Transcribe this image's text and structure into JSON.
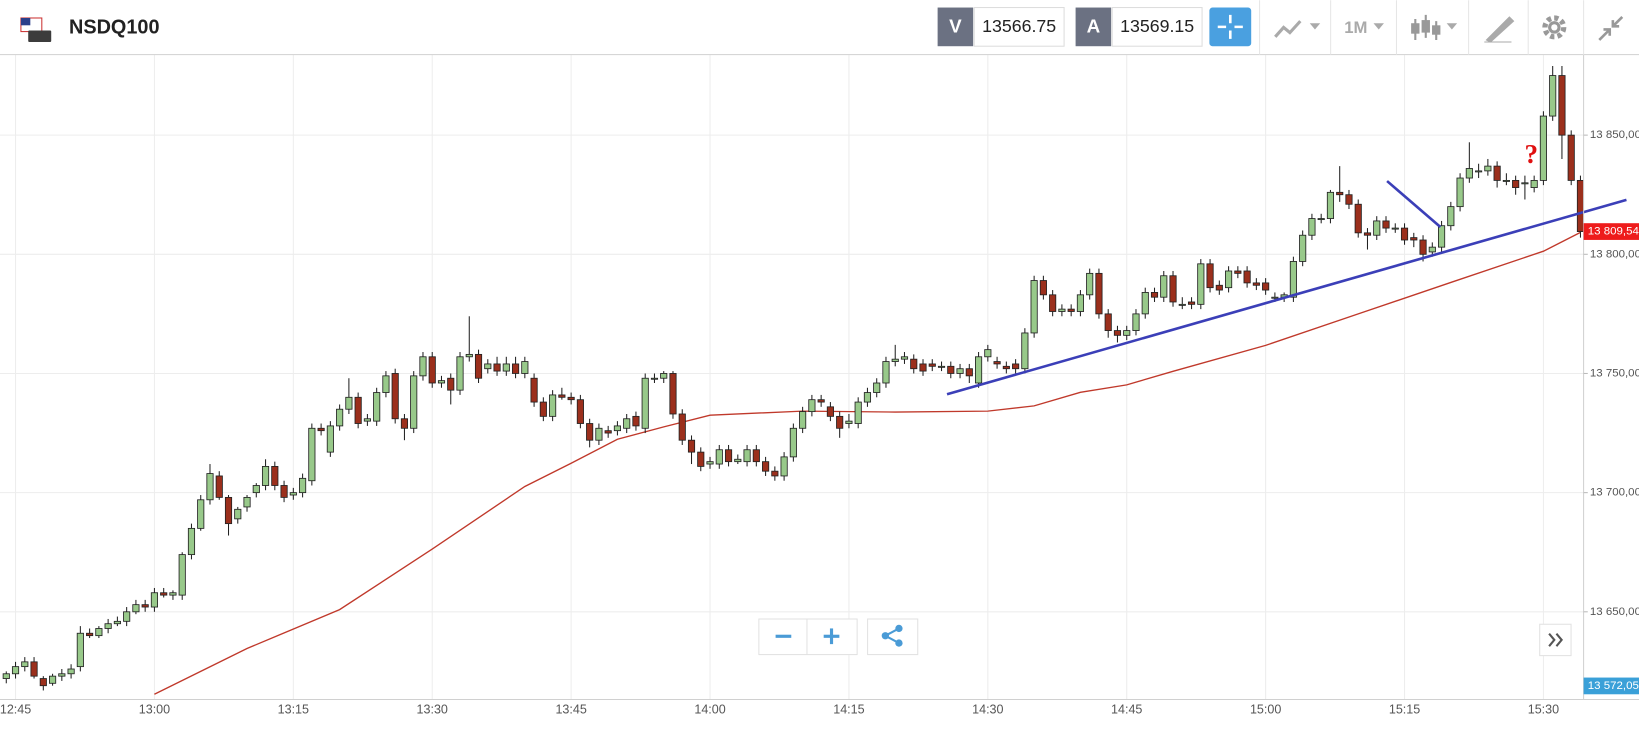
{
  "toolbar": {
    "symbol": "NSDQ100",
    "sell_label": "V",
    "sell_price": 13566.75,
    "buy_label": "A",
    "buy_price": 13569.15,
    "timeframe": "1M"
  },
  "chart_data": {
    "type": "candlestick",
    "categories": [
      null,
      "12:45",
      null,
      null,
      null,
      null,
      null,
      null,
      null,
      null,
      null,
      null,
      null,
      null,
      null,
      null,
      "13:00",
      null,
      null,
      null,
      null,
      null,
      null,
      null,
      null,
      null,
      null,
      null,
      null,
      null,
      null,
      "13:15",
      null,
      null,
      null,
      null,
      null,
      null,
      null,
      null,
      null,
      null,
      null,
      null,
      null,
      null,
      "13:30",
      null,
      null,
      null,
      null,
      null,
      null,
      null,
      null,
      null,
      null,
      null,
      null,
      null,
      null,
      "13:45",
      null,
      null,
      null,
      null,
      null,
      null,
      null,
      null,
      null,
      null,
      null,
      null,
      null,
      null,
      "14:00",
      null,
      null,
      null,
      null,
      null,
      null,
      null,
      null,
      null,
      null,
      null,
      null,
      null,
      null,
      "14:15",
      null,
      null,
      null,
      null,
      null,
      null,
      null,
      null,
      null,
      null,
      null,
      null,
      null,
      null,
      "14:30",
      null,
      null,
      null,
      null,
      null,
      null,
      null,
      null,
      null,
      null,
      null,
      null,
      null,
      null,
      "14:45",
      null,
      null,
      null,
      null,
      null,
      null,
      null,
      null,
      null,
      null,
      null,
      null,
      null,
      null,
      "15:00",
      null,
      null,
      null,
      null,
      null,
      null,
      null,
      null,
      null,
      null,
      null,
      null,
      null,
      null,
      "15:15",
      null,
      null,
      null,
      null,
      null,
      null,
      null,
      null,
      null,
      null,
      null,
      null,
      null,
      null,
      "15:30",
      null,
      null,
      null,
      null
    ],
    "ohlc": [
      [
        13622,
        13625,
        13620,
        13624
      ],
      [
        13624,
        13629,
        13622,
        13627
      ],
      [
        13627,
        13631,
        13625,
        13629
      ],
      [
        13629,
        13631,
        13622,
        13623
      ],
      [
        13622,
        13623,
        13617,
        13619
      ],
      [
        13620,
        13624,
        13619,
        13623
      ],
      [
        13623,
        13626,
        13621,
        13624
      ],
      [
        13624,
        13628,
        13622,
        13626
      ],
      [
        13627,
        13644,
        13625,
        13641
      ],
      [
        13641,
        13643,
        13639,
        13640
      ],
      [
        13640,
        13644,
        13639,
        13643
      ],
      [
        13643,
        13647,
        13641,
        13645
      ],
      [
        13645,
        13648,
        13644,
        13646
      ],
      [
        13646,
        13652,
        13644,
        13650
      ],
      [
        13650,
        13655,
        13649,
        13653
      ],
      [
        13653,
        13655,
        13650,
        13652
      ],
      [
        13652,
        13660,
        13650,
        13658
      ],
      [
        13658,
        13660,
        13656,
        13657
      ],
      [
        13657,
        13659,
        13655,
        13658
      ],
      [
        13657,
        13675,
        13655,
        13674
      ],
      [
        13674,
        13687,
        13672,
        13685
      ],
      [
        13685,
        13699,
        13684,
        13697
      ],
      [
        13697,
        13712,
        13695,
        13708
      ],
      [
        13707,
        13709,
        13697,
        13698
      ],
      [
        13698,
        13699,
        13682,
        13687
      ],
      [
        13689,
        13694,
        13687,
        13693
      ],
      [
        13694,
        13699,
        13692,
        13698
      ],
      [
        13700,
        13704,
        13698,
        13703
      ],
      [
        13703,
        13714,
        13701,
        13711
      ],
      [
        13711,
        13713,
        13701,
        13703
      ],
      [
        13703,
        13705,
        13696,
        13698
      ],
      [
        13699,
        13702,
        13697,
        13700
      ],
      [
        13700,
        13708,
        13698,
        13706
      ],
      [
        13705,
        13729,
        13703,
        13727
      ],
      [
        13727,
        13729,
        13724,
        13726
      ],
      [
        13717,
        13730,
        13715,
        13728
      ],
      [
        13728,
        13737,
        13726,
        13735
      ],
      [
        13735,
        13748,
        13733,
        13740
      ],
      [
        13740,
        13742,
        13727,
        13729
      ],
      [
        13730,
        13733,
        13728,
        13731
      ],
      [
        13730,
        13744,
        13728,
        13742
      ],
      [
        13742,
        13751,
        13740,
        13749
      ],
      [
        13750,
        13752,
        13729,
        13731
      ],
      [
        13731,
        13733,
        13722,
        13727
      ],
      [
        13727,
        13751,
        13725,
        13749
      ],
      [
        13749,
        13759,
        13747,
        13757
      ],
      [
        13757,
        13759,
        13744,
        13746
      ],
      [
        13746,
        13749,
        13744,
        13747
      ],
      [
        13748,
        13750,
        13737,
        13743
      ],
      [
        13743,
        13759,
        13741,
        13757
      ],
      [
        13757,
        13774,
        13755,
        13758
      ],
      [
        13758,
        13760,
        13746,
        13748
      ],
      [
        13752,
        13756,
        13750,
        13754
      ],
      [
        13754,
        13757,
        13749,
        13751
      ],
      [
        13751,
        13757,
        13749,
        13754
      ],
      [
        13754,
        13757,
        13748,
        13750
      ],
      [
        13750,
        13757,
        13748,
        13755
      ],
      [
        13748,
        13750,
        13736,
        13738
      ],
      [
        13738,
        13740,
        13730,
        13732
      ],
      [
        13732,
        13743,
        13730,
        13741
      ],
      [
        13741,
        13744,
        13739,
        13740
      ],
      [
        13740,
        13742,
        13737,
        13739
      ],
      [
        13739,
        13741,
        13727,
        13729
      ],
      [
        13729,
        13731,
        13719,
        13722
      ],
      [
        13722,
        13729,
        13720,
        13727
      ],
      [
        13726,
        13728,
        13723,
        13725
      ],
      [
        13726,
        13730,
        13724,
        13728
      ],
      [
        13727,
        13733,
        13725,
        13731
      ],
      [
        13732,
        13734,
        13726,
        13728
      ],
      [
        13727,
        13750,
        13725,
        13748
      ],
      [
        13748,
        13750,
        13746,
        13748
      ],
      [
        13748,
        13751,
        13746,
        13750
      ],
      [
        13750,
        13751,
        13731,
        13733
      ],
      [
        13733,
        13735,
        13720,
        13722
      ],
      [
        13722,
        13724,
        13712,
        13717
      ],
      [
        13717,
        13719,
        13709,
        13711
      ],
      [
        13712,
        13715,
        13710,
        13713
      ],
      [
        13712,
        13720,
        13710,
        13718
      ],
      [
        13718,
        13720,
        13711,
        13713
      ],
      [
        13713,
        13716,
        13712,
        13714
      ],
      [
        13713,
        13720,
        13711,
        13718
      ],
      [
        13718,
        13720,
        13711,
        13713
      ],
      [
        13713,
        13715,
        13707,
        13709
      ],
      [
        13709,
        13711,
        13705,
        13707
      ],
      [
        13707,
        13717,
        13705,
        13715
      ],
      [
        13715,
        13729,
        13713,
        13727
      ],
      [
        13727,
        13736,
        13725,
        13734
      ],
      [
        13734,
        13741,
        13732,
        13739
      ],
      [
        13739,
        13741,
        13736,
        13738
      ],
      [
        13736,
        13738,
        13730,
        13732
      ],
      [
        13732,
        13734,
        13723,
        13727
      ],
      [
        13729,
        13733,
        13727,
        13730
      ],
      [
        13729,
        13740,
        13727,
        13738
      ],
      [
        13738,
        13744,
        13736,
        13742
      ],
      [
        13742,
        13748,
        13740,
        13746
      ],
      [
        13746,
        13757,
        13744,
        13755
      ],
      [
        13755,
        13762,
        13753,
        13756
      ],
      [
        13756,
        13759,
        13754,
        13757
      ],
      [
        13756,
        13758,
        13750,
        13752
      ],
      [
        13754,
        13756,
        13749,
        13751
      ],
      [
        13754,
        13756,
        13751,
        13753
      ],
      [
        13753,
        13755,
        13751,
        13753
      ],
      [
        13753,
        13755,
        13748,
        13750
      ],
      [
        13750,
        13754,
        13748,
        13752
      ],
      [
        13752,
        13754,
        13746,
        13749
      ],
      [
        13746,
        13759,
        13744,
        13757
      ],
      [
        13757,
        13762,
        13755,
        13760
      ],
      [
        13755,
        13757,
        13752,
        13754
      ],
      [
        13753,
        13755,
        13750,
        13752
      ],
      [
        13754,
        13756,
        13750,
        13752
      ],
      [
        13752,
        13769,
        13750,
        13767
      ],
      [
        13767,
        13791,
        13765,
        13789
      ],
      [
        13789,
        13791,
        13781,
        13783
      ],
      [
        13783,
        13785,
        13774,
        13776
      ],
      [
        13776,
        13779,
        13774,
        13777
      ],
      [
        13777,
        13779,
        13774,
        13776
      ],
      [
        13776,
        13785,
        13774,
        13783
      ],
      [
        13783,
        13794,
        13781,
        13792
      ],
      [
        13792,
        13794,
        13773,
        13775
      ],
      [
        13775,
        13777,
        13765,
        13768
      ],
      [
        13768,
        13770,
        13763,
        13766
      ],
      [
        13766,
        13770,
        13764,
        13768
      ],
      [
        13768,
        13777,
        13766,
        13775
      ],
      [
        13775,
        13786,
        13773,
        13784
      ],
      [
        13784,
        13786,
        13780,
        13782
      ],
      [
        13782,
        13793,
        13780,
        13791
      ],
      [
        13791,
        13793,
        13778,
        13780
      ],
      [
        13779,
        13782,
        13777,
        13779
      ],
      [
        13780,
        13782,
        13777,
        13779
      ],
      [
        13779,
        13798,
        13777,
        13796
      ],
      [
        13796,
        13798,
        13784,
        13786
      ],
      [
        13787,
        13789,
        13783,
        13785
      ],
      [
        13786,
        13795,
        13784,
        13793
      ],
      [
        13793,
        13795,
        13790,
        13792
      ],
      [
        13793,
        13795,
        13786,
        13788
      ],
      [
        13788,
        13790,
        13785,
        13787
      ],
      [
        13788,
        13790,
        13783,
        13785
      ],
      [
        13782,
        13784,
        13780,
        13782
      ],
      [
        13782,
        13784,
        13780,
        13783
      ],
      [
        13782,
        13799,
        13780,
        13797
      ],
      [
        13797,
        13810,
        13795,
        13808
      ],
      [
        13808,
        13817,
        13806,
        13815
      ],
      [
        13815,
        13817,
        13813,
        13815
      ],
      [
        13815,
        13827,
        13813,
        13826
      ],
      [
        13826,
        13837,
        13822,
        13825
      ],
      [
        13825,
        13827,
        13819,
        13821
      ],
      [
        13821,
        13823,
        13807,
        13809
      ],
      [
        13809,
        13811,
        13802,
        13808
      ],
      [
        13808,
        13816,
        13806,
        13814
      ],
      [
        13814,
        13816,
        13809,
        13811
      ],
      [
        13811,
        13813,
        13809,
        13811
      ],
      [
        13811,
        13813,
        13804,
        13806
      ],
      [
        13807,
        13809,
        13803,
        13806
      ],
      [
        13806,
        13808,
        13797,
        13800
      ],
      [
        13801,
        13805,
        13799,
        13803
      ],
      [
        13803,
        13814,
        13801,
        13812
      ],
      [
        13812,
        13822,
        13810,
        13820
      ],
      [
        13820,
        13834,
        13818,
        13832
      ],
      [
        13832,
        13847,
        13830,
        13836
      ],
      [
        13835,
        13838,
        13832,
        13835
      ],
      [
        13835,
        13840,
        13833,
        13837
      ],
      [
        13837,
        13839,
        13828,
        13831
      ],
      [
        13831,
        13834,
        13829,
        13831
      ],
      [
        13831,
        13833,
        13825,
        13828
      ],
      [
        13830,
        13833,
        13823,
        13830
      ],
      [
        13828,
        13833,
        13826,
        13831
      ],
      [
        13831,
        13860,
        13829,
        13858
      ],
      [
        13858,
        13879,
        13856,
        13875
      ],
      [
        13875,
        13879,
        13840,
        13850
      ],
      [
        13850,
        13852,
        13829,
        13831
      ],
      [
        13831,
        13833,
        13807,
        13809.54
      ]
    ],
    "up_color": "#98c98a",
    "down_color": "#9b2f1c",
    "moving_average": {
      "color": "#c0392b",
      "x": [
        "13:00",
        "13:05",
        "13:10",
        "13:20",
        "13:30",
        "13:40",
        "13:45",
        "13:50",
        "13:55",
        "14:00",
        "14:10",
        "14:20",
        "14:30",
        "14:35",
        "14:40",
        "14:45",
        "14:50",
        "15:00",
        "15:10",
        "15:20",
        "15:30",
        "15:34"
      ],
      "values": [
        13615.4,
        13625,
        13634.6,
        13650.9,
        13676.3,
        13702.6,
        13712.3,
        13722.4,
        13727.6,
        13732.5,
        13734.2,
        13733.8,
        13734.2,
        13736.4,
        13742.1,
        13745.2,
        13750.9,
        13761.8,
        13775,
        13788.2,
        13801.3,
        13809.2
      ]
    },
    "ylim": [
      13613.2,
      13883.8
    ],
    "yticks": [
      {
        "value": 13650,
        "label": "13 650,00"
      },
      {
        "value": 13700,
        "label": "13 700,00"
      },
      {
        "value": 13750,
        "label": "13 750,00"
      },
      {
        "value": 13800,
        "label": "13 800,00"
      },
      {
        "value": 13850,
        "label": "13 850,00"
      }
    ],
    "grid": true,
    "last_price": {
      "value": 13809.54,
      "label": "13 809,54",
      "color": "#ee1c1c"
    },
    "bottom_price": {
      "value": 13572.05,
      "label": "13 572,05",
      "color": "#3aa0d8"
    },
    "annotation": "?"
  }
}
